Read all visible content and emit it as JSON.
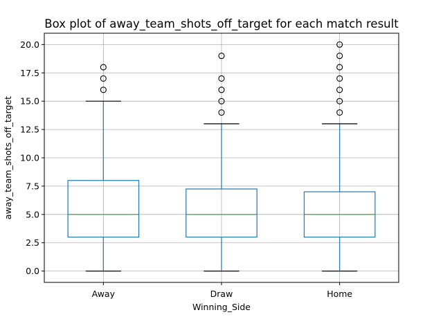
{
  "chart_data": {
    "type": "box",
    "title": "Box plot of away_team_shots_off_target for each match result",
    "xlabel": "Winning_Side",
    "ylabel": "away_team_shots_off_target",
    "categories": [
      "Away",
      "Draw",
      "Home"
    ],
    "ylim": [
      -1.0,
      21.0
    ],
    "yticks": [
      0.0,
      2.5,
      5.0,
      7.5,
      10.0,
      12.5,
      15.0,
      17.5,
      20.0
    ],
    "ytick_labels": [
      "0.0",
      "2.5",
      "5.0",
      "7.5",
      "10.0",
      "12.5",
      "15.0",
      "17.5",
      "20.0"
    ],
    "grid": true,
    "boxes": [
      {
        "category": "Away",
        "whisker_low": 0,
        "q1": 3,
        "median": 5,
        "q3": 8,
        "whisker_high": 15,
        "outliers": [
          16,
          17,
          18
        ]
      },
      {
        "category": "Draw",
        "whisker_low": 0,
        "q1": 3,
        "median": 5,
        "q3": 7.25,
        "whisker_high": 13,
        "outliers": [
          14,
          15,
          16,
          17,
          19
        ]
      },
      {
        "category": "Home",
        "whisker_low": 0,
        "q1": 3,
        "median": 5,
        "q3": 7,
        "whisker_high": 13,
        "outliers": [
          14,
          15,
          16,
          17,
          18,
          19,
          20
        ]
      }
    ],
    "colors": {
      "box": "#1f77b4",
      "median": "#2ca02c",
      "whisker_cap": "#000000",
      "grid": "#b0b0b0",
      "outlier": "#000000"
    }
  }
}
